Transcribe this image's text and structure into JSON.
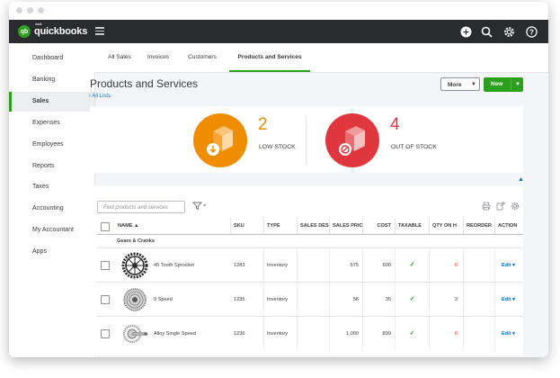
{
  "app": {
    "brand": "quickbooks",
    "brand_small": "intuit",
    "logo_mark": "qb"
  },
  "colors": {
    "accent": "#2ca01c",
    "low_stock": "#f08c00",
    "out_of_stock": "#e0363d",
    "link": "#0077c5",
    "topbar": "#2a2b2e"
  },
  "topbar": {
    "icons": [
      "plus-icon",
      "search-icon",
      "gear-icon",
      "help-icon"
    ]
  },
  "sidebar": {
    "items": [
      {
        "label": "Dashboard"
      },
      {
        "label": "Banking"
      },
      {
        "label": "Sales",
        "active": true
      },
      {
        "label": "Expenses"
      },
      {
        "label": "Employees"
      },
      {
        "label": "Reports"
      },
      {
        "label": "Taxes"
      },
      {
        "label": "Accounting"
      },
      {
        "label": "My Accountant"
      },
      {
        "label": "Apps"
      }
    ]
  },
  "tabs": [
    {
      "label": "All Sales"
    },
    {
      "label": "Invoices"
    },
    {
      "label": "Customers"
    },
    {
      "label": "Products and Services",
      "active": true
    }
  ],
  "page": {
    "title": "Products and Services",
    "back_link": "All Lists",
    "more_label": "More",
    "new_label": "New"
  },
  "stock": {
    "low": {
      "count": "2",
      "label": "LOW STOCK"
    },
    "out": {
      "count": "4",
      "label": "OUT OF STOCK"
    }
  },
  "table": {
    "search_placeholder": "Find products and services",
    "headers": {
      "name": "NAME",
      "sku": "SKU",
      "type": "TYPE",
      "sales_desc": "SALES DES",
      "sales_price": "SALES PRIC",
      "cost": "COST",
      "taxable": "TAXABLE",
      "qty": "QTY ON H",
      "reorder": "REORDER",
      "action": "ACTION"
    },
    "group": "Gears & Cranks",
    "rows": [
      {
        "name": "45 Tooth Sprocket",
        "sku": "1283",
        "type": "Inventory",
        "price": "575",
        "cost": "600",
        "qty": "0",
        "qty_zero": true,
        "action": "Edit",
        "icon": "sprocket-icon"
      },
      {
        "name": "9 Speed",
        "sku": "1235",
        "type": "Inventory",
        "price": "56",
        "cost": "35",
        "qty": "3",
        "qty_zero": false,
        "action": "Edit",
        "icon": "cassette-icon"
      },
      {
        "name": "Alloy Single Speed",
        "sku": "1236",
        "type": "Inventory",
        "price": "1,000",
        "cost": "899",
        "qty": "0",
        "qty_zero": true,
        "action": "Edit",
        "icon": "crankset-icon"
      }
    ]
  }
}
